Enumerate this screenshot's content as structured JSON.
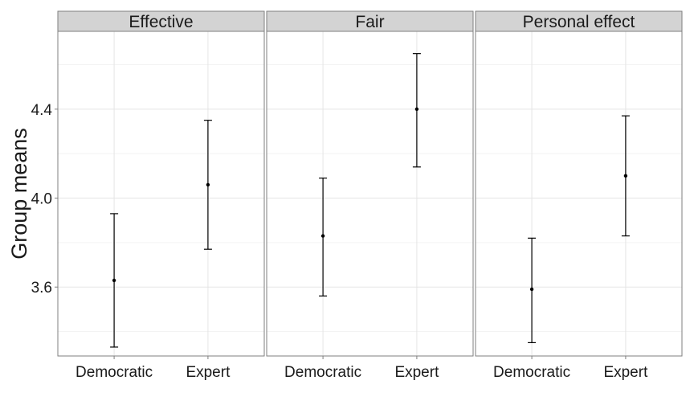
{
  "chart_data": {
    "type": "scatter",
    "ylabel": "Group means",
    "xlabel": "",
    "categories": [
      "Democratic",
      "Expert"
    ],
    "ylim": [
      3.29,
      4.75
    ],
    "y_ticks": [
      3.6,
      4.0,
      4.4
    ],
    "y_tick_labels": [
      "3.6",
      "4.0",
      "4.4"
    ],
    "grid": true,
    "panels": [
      {
        "title": "Effective",
        "points": [
          {
            "x": "Democratic",
            "y": 3.63,
            "ymin": 3.33,
            "ymax": 3.93
          },
          {
            "x": "Expert",
            "y": 4.06,
            "ymin": 3.77,
            "ymax": 4.35
          }
        ]
      },
      {
        "title": "Fair",
        "points": [
          {
            "x": "Democratic",
            "y": 3.83,
            "ymin": 3.56,
            "ymax": 4.09
          },
          {
            "x": "Expert",
            "y": 4.4,
            "ymin": 4.14,
            "ymax": 4.65
          }
        ]
      },
      {
        "title": "Personal effect",
        "points": [
          {
            "x": "Democratic",
            "y": 3.59,
            "ymin": 3.35,
            "ymax": 3.82
          },
          {
            "x": "Expert",
            "y": 4.1,
            "ymin": 3.83,
            "ymax": 4.37
          }
        ]
      }
    ]
  },
  "colors": {
    "strip_fill": "#d3d3d3",
    "panel_border": "#7f7f7f",
    "grid_major": "#e5e5e5",
    "grid_minor": "#f3f3f3",
    "marks": "#000000"
  }
}
